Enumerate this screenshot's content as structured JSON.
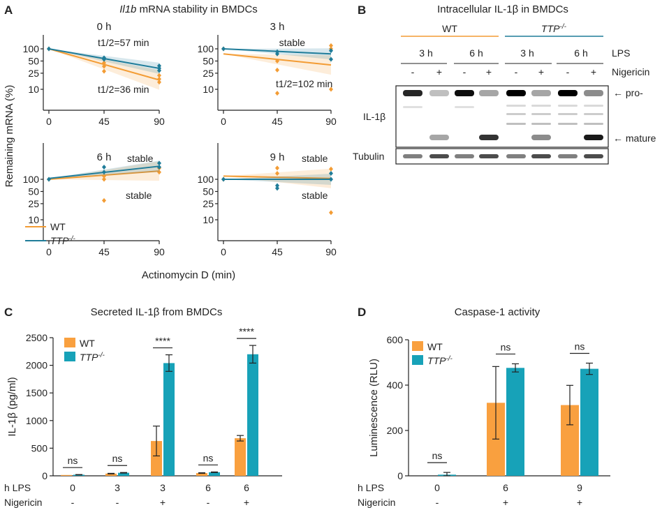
{
  "panels": {
    "A": {
      "letter": "A",
      "title_italic": "Il1b",
      "title_rest": " mRNA stability in BMDCs",
      "ylabel": "Remaining mRNA (%)",
      "xlabel": "Actinomycin D (min)",
      "legend": {
        "wt": "WT",
        "ko_base": "TTP",
        "ko_sup": "-/-"
      }
    },
    "B": {
      "letter": "B",
      "title": "Intracellular IL-1β in BMDCs",
      "group_wt": "WT",
      "group_ko_base": "TTP",
      "group_ko_sup": "-/-",
      "timepoints": [
        "3 h",
        "6 h",
        "3 h",
        "6 h"
      ],
      "lps_label": "LPS",
      "nigericin_label": "Nigericin",
      "nig_signs": [
        "-",
        "+",
        "-",
        "+",
        "-",
        "+",
        "-",
        "+"
      ],
      "blot_label": "IL-1β",
      "tubulin_label": "Tubulin",
      "pro_label": "← pro-",
      "mature_label": "← mature"
    },
    "C": {
      "letter": "C"
    },
    "D": {
      "letter": "D"
    }
  },
  "chart_data": [
    {
      "type": "line",
      "panel": "A",
      "subtitle": "0 h",
      "x": [
        0,
        45,
        90
      ],
      "yscale": "log",
      "yticks": [
        10,
        25,
        50,
        100
      ],
      "xticks": [
        0,
        45,
        90
      ],
      "series": [
        {
          "name": "WT",
          "color": "#f39c34",
          "fit": [
            [
              0,
              100
            ],
            [
              90,
              17
            ]
          ],
          "points": [
            [
              0,
              100
            ],
            [
              45,
              45
            ],
            [
              45,
              37
            ],
            [
              45,
              28
            ],
            [
              90,
              22
            ],
            [
              90,
              18
            ],
            [
              90,
              15
            ]
          ]
        },
        {
          "name": "TTP-/-",
          "color": "#1f7c99",
          "fit": [
            [
              0,
              100
            ],
            [
              90,
              33
            ]
          ],
          "points": [
            [
              0,
              100
            ],
            [
              45,
              60
            ],
            [
              45,
              55
            ],
            [
              90,
              38
            ],
            [
              90,
              33
            ],
            [
              90,
              29
            ]
          ]
        }
      ],
      "annotations": [
        {
          "text": "t1/2=57 min"
        },
        {
          "text": "t1/2=36 min"
        }
      ]
    },
    {
      "type": "line",
      "panel": "A",
      "subtitle": "3 h",
      "x": [
        0,
        45,
        90
      ],
      "yscale": "log",
      "yticks": [
        10,
        25,
        50,
        100
      ],
      "xticks": [
        0,
        45,
        90
      ],
      "series": [
        {
          "name": "WT",
          "color": "#f39c34",
          "fit": [
            [
              0,
              75
            ],
            [
              90,
              40
            ]
          ],
          "points": [
            [
              0,
              100
            ],
            [
              45,
              50
            ],
            [
              45,
              30
            ],
            [
              45,
              8
            ],
            [
              90,
              120
            ],
            [
              90,
              100
            ],
            [
              90,
              10
            ]
          ]
        },
        {
          "name": "TTP-/-",
          "color": "#1f7c99",
          "fit": [
            [
              0,
              100
            ],
            [
              90,
              75
            ]
          ],
          "points": [
            [
              0,
              100
            ],
            [
              45,
              85
            ],
            [
              45,
              75
            ],
            [
              90,
              90
            ],
            [
              90,
              55
            ]
          ]
        }
      ],
      "annotations": [
        {
          "text": "stable"
        },
        {
          "text": "t1/2=102 min"
        }
      ]
    },
    {
      "type": "line",
      "panel": "A",
      "subtitle": "6 h",
      "x": [
        0,
        45,
        90
      ],
      "yscale": "log",
      "yticks": [
        10,
        25,
        50,
        100
      ],
      "xticks": [
        0,
        45,
        90
      ],
      "series": [
        {
          "name": "WT",
          "color": "#f39c34",
          "fit": [
            [
              0,
              100
            ],
            [
              90,
              160
            ]
          ],
          "points": [
            [
              0,
              100
            ],
            [
              45,
              120
            ],
            [
              45,
              100
            ],
            [
              45,
              30
            ],
            [
              90,
              190
            ],
            [
              90,
              150
            ]
          ]
        },
        {
          "name": "TTP-/-",
          "color": "#1f7c99",
          "fit": [
            [
              0,
              105
            ],
            [
              90,
              210
            ]
          ],
          "points": [
            [
              0,
              100
            ],
            [
              45,
              200
            ],
            [
              45,
              150
            ],
            [
              90,
              250
            ],
            [
              90,
              200
            ]
          ]
        }
      ],
      "annotations": [
        {
          "text": "stable"
        },
        {
          "text": "stable"
        }
      ]
    },
    {
      "type": "line",
      "panel": "A",
      "subtitle": "9 h",
      "x": [
        0,
        45,
        90
      ],
      "yscale": "log",
      "yticks": [
        10,
        25,
        50,
        100
      ],
      "xticks": [
        0,
        45,
        90
      ],
      "series": [
        {
          "name": "WT",
          "color": "#f39c34",
          "fit": [
            [
              0,
              120
            ],
            [
              90,
              105
            ]
          ],
          "points": [
            [
              0,
              100
            ],
            [
              45,
              190
            ],
            [
              45,
              140
            ],
            [
              90,
              180
            ],
            [
              90,
              15
            ]
          ]
        },
        {
          "name": "TTP-/-",
          "color": "#1f7c99",
          "fit": [
            [
              0,
              100
            ],
            [
              90,
              100
            ]
          ],
          "points": [
            [
              0,
              100
            ],
            [
              45,
              70
            ],
            [
              45,
              60
            ],
            [
              90,
              140
            ],
            [
              90,
              100
            ]
          ]
        }
      ],
      "annotations": [
        {
          "text": "stable"
        },
        {
          "text": "stable"
        }
      ]
    },
    {
      "type": "bar",
      "panel": "C",
      "title": "Secreted IL-1β from BMDCs",
      "ylabel": "IL-1β (pg/ml)",
      "ylim": [
        0,
        2500
      ],
      "yticks": [
        0,
        500,
        1000,
        1500,
        2000,
        2500
      ],
      "row1_label": "h LPS",
      "row2_label": "Nigericin",
      "categories": [
        "0",
        "3",
        "3",
        "6",
        "6"
      ],
      "nigericin": [
        "-",
        "-",
        "+",
        "-",
        "+"
      ],
      "series": [
        {
          "name": "WT",
          "color": "#f9a03f",
          "values": [
            15,
            40,
            630,
            50,
            680
          ],
          "errors": [
            0,
            5,
            270,
            5,
            50
          ]
        },
        {
          "name": "TTP-/-",
          "color": "#17a2b8",
          "values": [
            20,
            55,
            2040,
            65,
            2200
          ],
          "errors": [
            3,
            5,
            150,
            5,
            160
          ]
        }
      ],
      "significance": [
        "ns",
        "ns",
        "****",
        "ns",
        "****"
      ]
    },
    {
      "type": "bar",
      "panel": "D",
      "title": "Caspase-1 activity",
      "ylabel": "Luminescence (RLU)",
      "ylim": [
        0,
        600
      ],
      "yticks": [
        0,
        200,
        400,
        600
      ],
      "row1_label": "h LPS",
      "row2_label": "Nigericin",
      "categories": [
        "0",
        "6",
        "9"
      ],
      "nigericin": [
        "-",
        "+",
        "+"
      ],
      "series": [
        {
          "name": "WT",
          "color": "#f9a03f",
          "values": [
            0,
            322,
            312
          ],
          "errors": [
            0,
            160,
            87
          ]
        },
        {
          "name": "TTP-/-",
          "color": "#17a2b8",
          "values": [
            5,
            476,
            472
          ],
          "errors": [
            10,
            18,
            25
          ]
        }
      ],
      "significance": [
        "ns",
        "ns",
        "ns"
      ]
    }
  ]
}
